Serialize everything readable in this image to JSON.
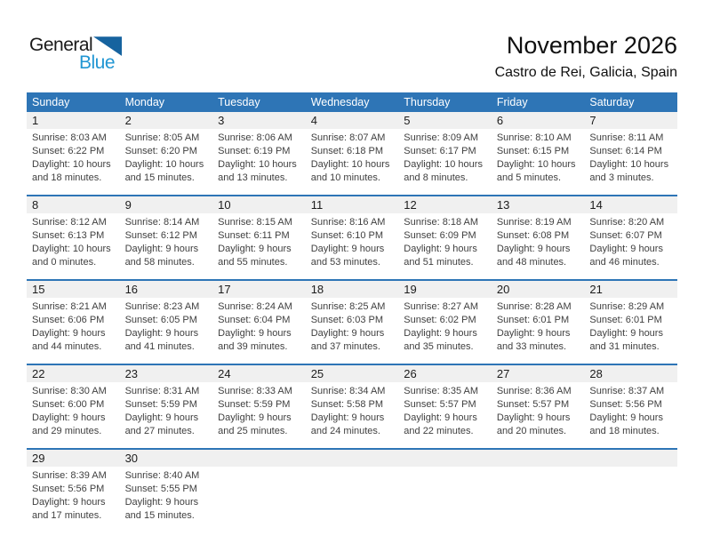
{
  "logo": {
    "general": "General",
    "blue": "Blue",
    "triangle_color": "#16639F",
    "blue_color": "#2196D3"
  },
  "header": {
    "title": "November 2026",
    "subtitle": "Castro de Rei, Galicia, Spain"
  },
  "colors": {
    "accent_blue": "#2E75B6",
    "band_gray": "#F0F0F0"
  },
  "weekdays": [
    "Sunday",
    "Monday",
    "Tuesday",
    "Wednesday",
    "Thursday",
    "Friday",
    "Saturday"
  ],
  "weeks": [
    [
      {
        "day": "1",
        "sunrise": "Sunrise: 8:03 AM",
        "sunset": "Sunset: 6:22 PM",
        "daylight": "Daylight: 10 hours and 18 minutes."
      },
      {
        "day": "2",
        "sunrise": "Sunrise: 8:05 AM",
        "sunset": "Sunset: 6:20 PM",
        "daylight": "Daylight: 10 hours and 15 minutes."
      },
      {
        "day": "3",
        "sunrise": "Sunrise: 8:06 AM",
        "sunset": "Sunset: 6:19 PM",
        "daylight": "Daylight: 10 hours and 13 minutes."
      },
      {
        "day": "4",
        "sunrise": "Sunrise: 8:07 AM",
        "sunset": "Sunset: 6:18 PM",
        "daylight": "Daylight: 10 hours and 10 minutes."
      },
      {
        "day": "5",
        "sunrise": "Sunrise: 8:09 AM",
        "sunset": "Sunset: 6:17 PM",
        "daylight": "Daylight: 10 hours and 8 minutes."
      },
      {
        "day": "6",
        "sunrise": "Sunrise: 8:10 AM",
        "sunset": "Sunset: 6:15 PM",
        "daylight": "Daylight: 10 hours and 5 minutes."
      },
      {
        "day": "7",
        "sunrise": "Sunrise: 8:11 AM",
        "sunset": "Sunset: 6:14 PM",
        "daylight": "Daylight: 10 hours and 3 minutes."
      }
    ],
    [
      {
        "day": "8",
        "sunrise": "Sunrise: 8:12 AM",
        "sunset": "Sunset: 6:13 PM",
        "daylight": "Daylight: 10 hours and 0 minutes."
      },
      {
        "day": "9",
        "sunrise": "Sunrise: 8:14 AM",
        "sunset": "Sunset: 6:12 PM",
        "daylight": "Daylight: 9 hours and 58 minutes."
      },
      {
        "day": "10",
        "sunrise": "Sunrise: 8:15 AM",
        "sunset": "Sunset: 6:11 PM",
        "daylight": "Daylight: 9 hours and 55 minutes."
      },
      {
        "day": "11",
        "sunrise": "Sunrise: 8:16 AM",
        "sunset": "Sunset: 6:10 PM",
        "daylight": "Daylight: 9 hours and 53 minutes."
      },
      {
        "day": "12",
        "sunrise": "Sunrise: 8:18 AM",
        "sunset": "Sunset: 6:09 PM",
        "daylight": "Daylight: 9 hours and 51 minutes."
      },
      {
        "day": "13",
        "sunrise": "Sunrise: 8:19 AM",
        "sunset": "Sunset: 6:08 PM",
        "daylight": "Daylight: 9 hours and 48 minutes."
      },
      {
        "day": "14",
        "sunrise": "Sunrise: 8:20 AM",
        "sunset": "Sunset: 6:07 PM",
        "daylight": "Daylight: 9 hours and 46 minutes."
      }
    ],
    [
      {
        "day": "15",
        "sunrise": "Sunrise: 8:21 AM",
        "sunset": "Sunset: 6:06 PM",
        "daylight": "Daylight: 9 hours and 44 minutes."
      },
      {
        "day": "16",
        "sunrise": "Sunrise: 8:23 AM",
        "sunset": "Sunset: 6:05 PM",
        "daylight": "Daylight: 9 hours and 41 minutes."
      },
      {
        "day": "17",
        "sunrise": "Sunrise: 8:24 AM",
        "sunset": "Sunset: 6:04 PM",
        "daylight": "Daylight: 9 hours and 39 minutes."
      },
      {
        "day": "18",
        "sunrise": "Sunrise: 8:25 AM",
        "sunset": "Sunset: 6:03 PM",
        "daylight": "Daylight: 9 hours and 37 minutes."
      },
      {
        "day": "19",
        "sunrise": "Sunrise: 8:27 AM",
        "sunset": "Sunset: 6:02 PM",
        "daylight": "Daylight: 9 hours and 35 minutes."
      },
      {
        "day": "20",
        "sunrise": "Sunrise: 8:28 AM",
        "sunset": "Sunset: 6:01 PM",
        "daylight": "Daylight: 9 hours and 33 minutes."
      },
      {
        "day": "21",
        "sunrise": "Sunrise: 8:29 AM",
        "sunset": "Sunset: 6:01 PM",
        "daylight": "Daylight: 9 hours and 31 minutes."
      }
    ],
    [
      {
        "day": "22",
        "sunrise": "Sunrise: 8:30 AM",
        "sunset": "Sunset: 6:00 PM",
        "daylight": "Daylight: 9 hours and 29 minutes."
      },
      {
        "day": "23",
        "sunrise": "Sunrise: 8:31 AM",
        "sunset": "Sunset: 5:59 PM",
        "daylight": "Daylight: 9 hours and 27 minutes."
      },
      {
        "day": "24",
        "sunrise": "Sunrise: 8:33 AM",
        "sunset": "Sunset: 5:59 PM",
        "daylight": "Daylight: 9 hours and 25 minutes."
      },
      {
        "day": "25",
        "sunrise": "Sunrise: 8:34 AM",
        "sunset": "Sunset: 5:58 PM",
        "daylight": "Daylight: 9 hours and 24 minutes."
      },
      {
        "day": "26",
        "sunrise": "Sunrise: 8:35 AM",
        "sunset": "Sunset: 5:57 PM",
        "daylight": "Daylight: 9 hours and 22 minutes."
      },
      {
        "day": "27",
        "sunrise": "Sunrise: 8:36 AM",
        "sunset": "Sunset: 5:57 PM",
        "daylight": "Daylight: 9 hours and 20 minutes."
      },
      {
        "day": "28",
        "sunrise": "Sunrise: 8:37 AM",
        "sunset": "Sunset: 5:56 PM",
        "daylight": "Daylight: 9 hours and 18 minutes."
      }
    ],
    [
      {
        "day": "29",
        "sunrise": "Sunrise: 8:39 AM",
        "sunset": "Sunset: 5:56 PM",
        "daylight": "Daylight: 9 hours and 17 minutes."
      },
      {
        "day": "30",
        "sunrise": "Sunrise: 8:40 AM",
        "sunset": "Sunset: 5:55 PM",
        "daylight": "Daylight: 9 hours and 15 minutes."
      },
      null,
      null,
      null,
      null,
      null
    ]
  ]
}
